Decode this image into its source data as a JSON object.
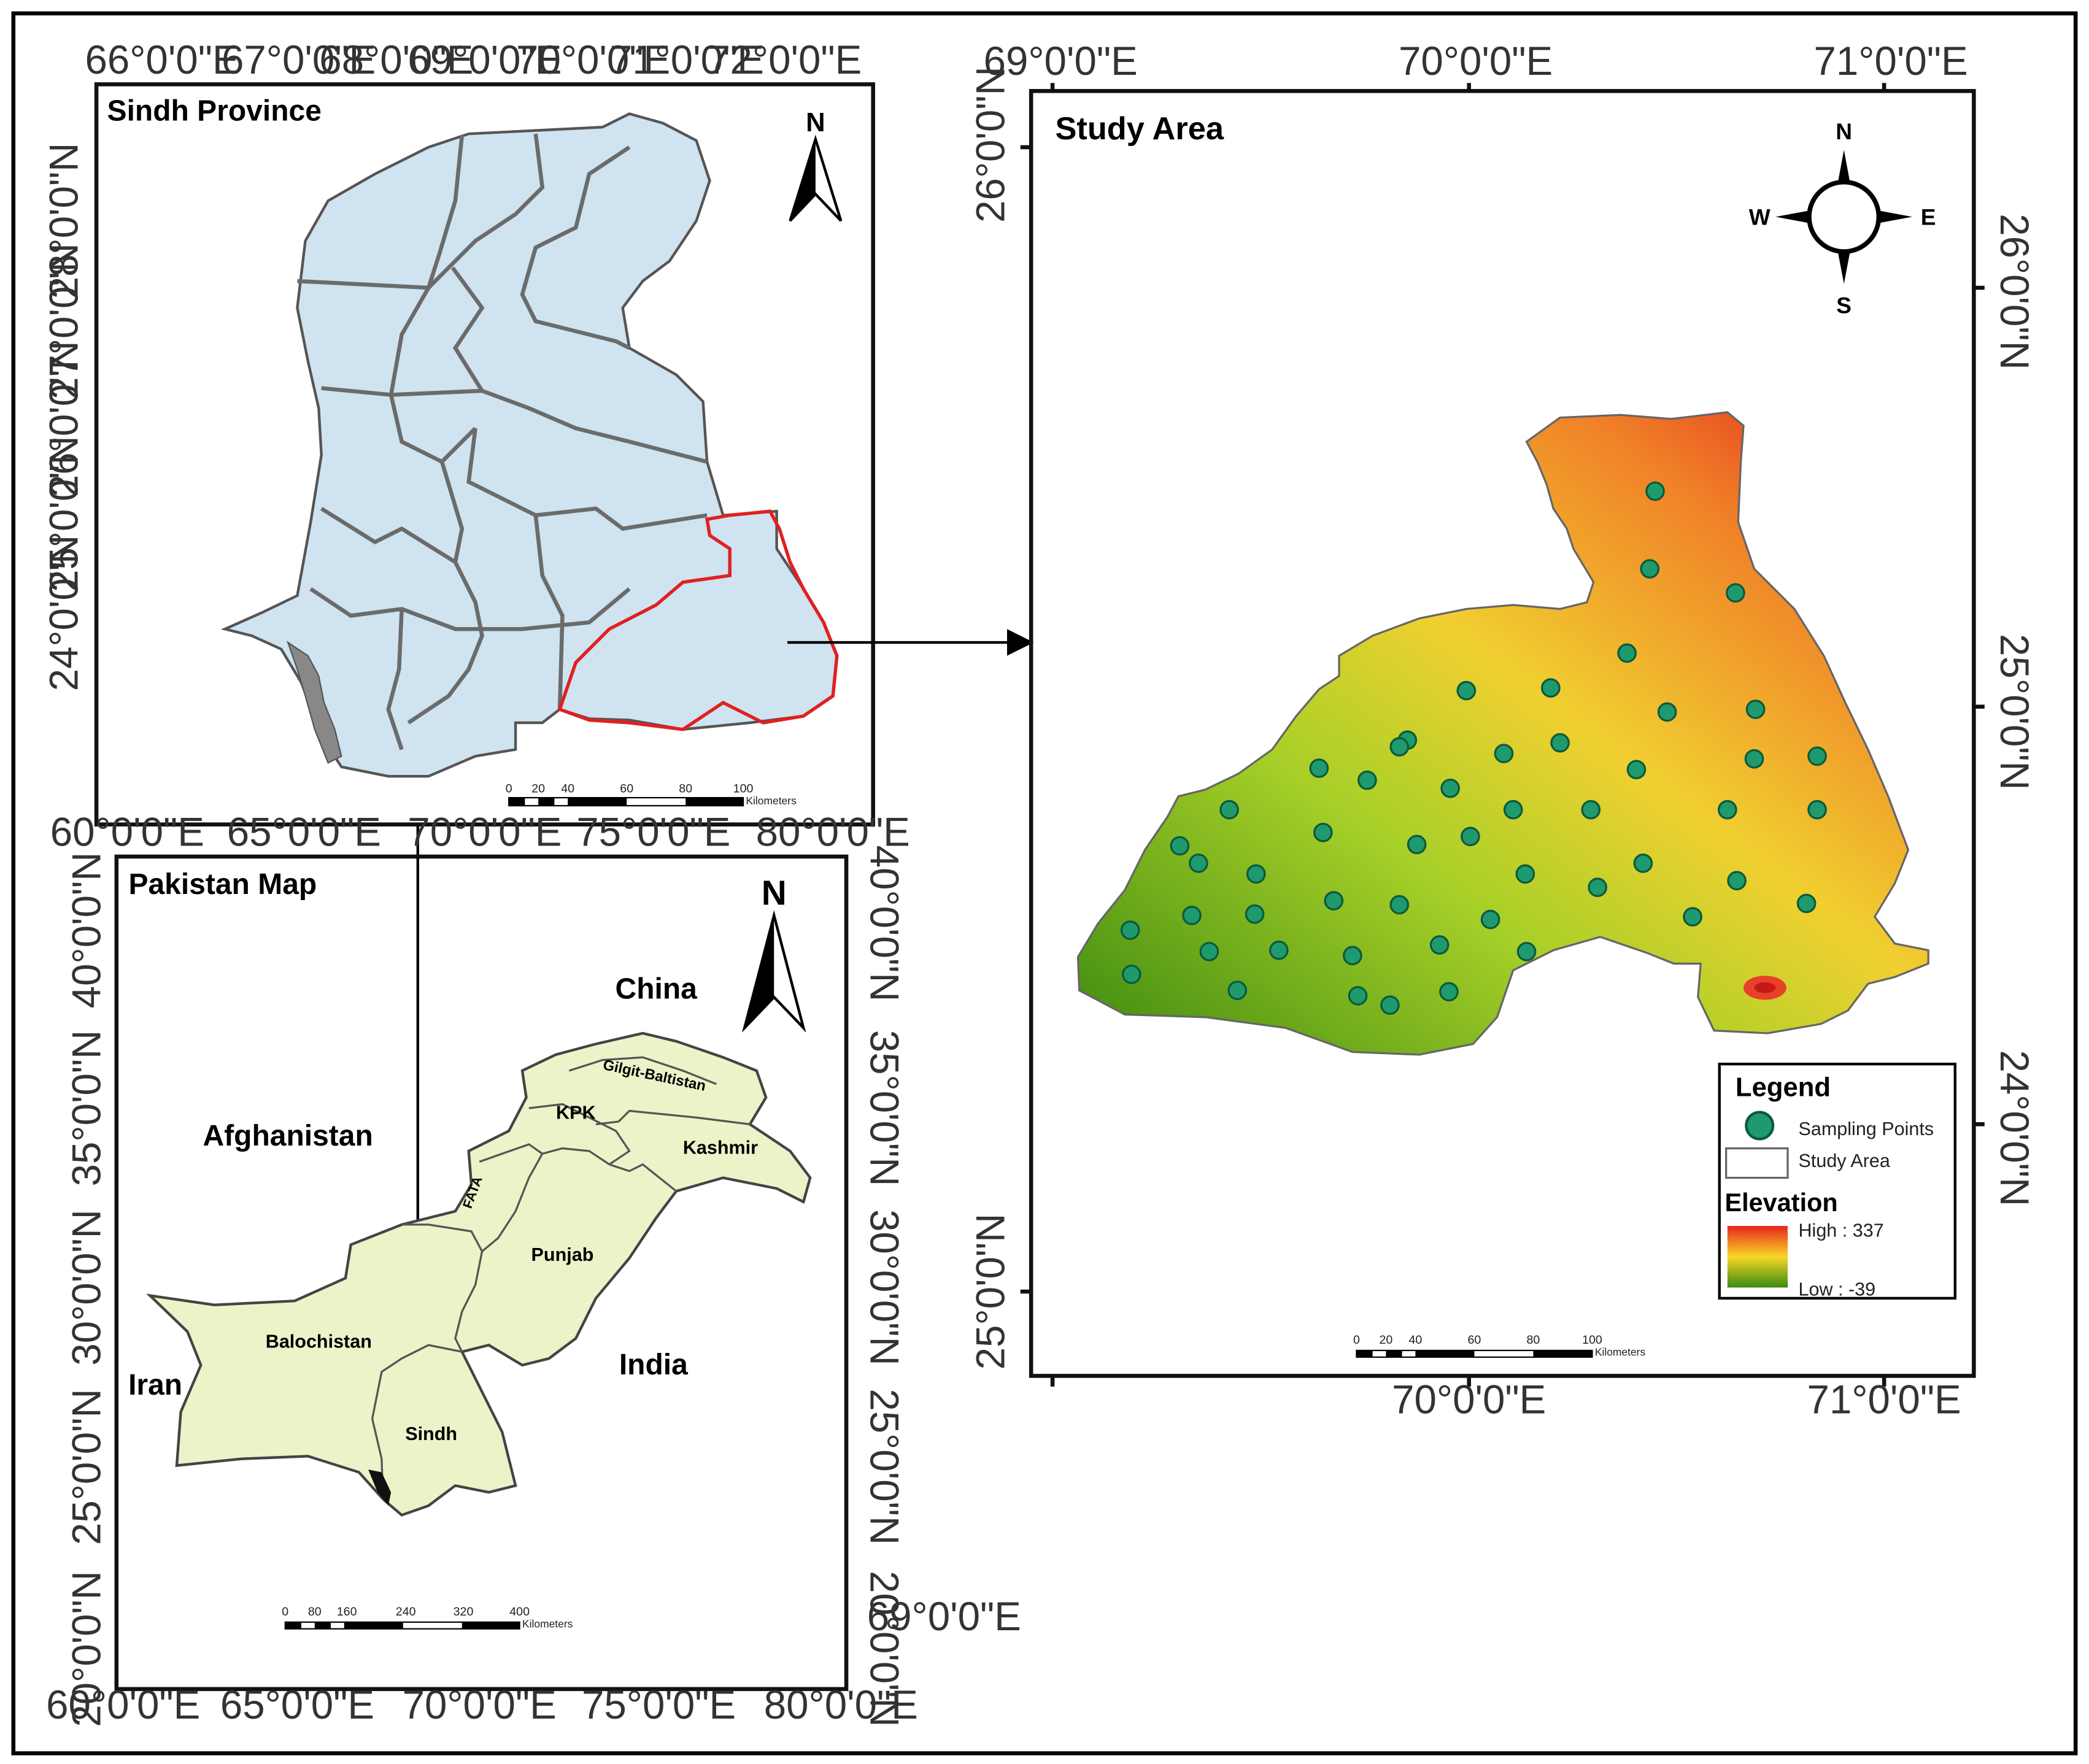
{
  "sindh_panel": {
    "title": "Sindh Province",
    "north": "N",
    "top_ticks": [
      "66°0'0\"E",
      "67°0'0\"E",
      "68°0'0\"E",
      "69°0'0\"E",
      "70°0'0\"E",
      "71°0'0\"E",
      "72°0'0\"E"
    ],
    "left_ticks": [
      "28°0'0\"N",
      "27°0'0\"N",
      "26°0'0\"N",
      "25°0'0\"N",
      "24°0'0\"N"
    ],
    "scale": {
      "labels": [
        "0",
        "20",
        "40",
        "60",
        "80",
        "100"
      ],
      "unit": "Kilometers"
    },
    "colors": {
      "province_fill": "#cfe3f0",
      "study_outline": "#e02020"
    }
  },
  "pakistan_panel": {
    "title": "Pakistan Map",
    "north": "N",
    "top_ticks": [
      "60°0'0\"E",
      "65°0'0\"E",
      "70°0'0\"E",
      "75°0'0\"E",
      "80°0'0\"E"
    ],
    "bottom_ticks": [
      "60°0'0\"E",
      "65°0'0\"E",
      "70°0'0\"E",
      "75°0'0\"E",
      "80°0'0\"E"
    ],
    "left_ticks": [
      "40°0'0\"N",
      "35°0'0\"N",
      "30°0'0\"N",
      "25°0'0\"N",
      "20°0'0\"N"
    ],
    "right_ticks": [
      "40°0'0\"N",
      "35°0'0\"N",
      "30°0'0\"N",
      "25°0'0\"N",
      "20°0'0\"N"
    ],
    "neighbors": {
      "china": "China",
      "afghanistan": "Afghanistan",
      "iran": "Iran",
      "india": "India"
    },
    "provinces": {
      "gilgit": "Gilgit-Baltistan",
      "kpk": "KPK",
      "kashmir": "Kashmir",
      "fata": "FATA",
      "punjab": "Punjab",
      "balochistan": "Balochistan",
      "sindh": "Sindh"
    },
    "stray_label": "69°0'0\"E",
    "scale": {
      "labels": [
        "0",
        "80",
        "160",
        "240",
        "320",
        "400"
      ],
      "unit": "Kilometers"
    },
    "colors": {
      "country_fill": "#eaf4c8"
    }
  },
  "study_panel": {
    "title": "Study Area",
    "compass": {
      "n": "N",
      "s": "S",
      "e": "E",
      "w": "W"
    },
    "top_ticks": [
      "69°0'0\"E",
      "70°0'0\"E",
      "71°0'0\"E"
    ],
    "bottom_ticks": [
      "70°0'0\"E",
      "71°0'0\"E"
    ],
    "left_ticks": [
      "26°0'0\"N",
      "25°0'0\"N"
    ],
    "right_ticks": [
      "26°0'0\"N",
      "25°0'0\"N",
      "24°0'0\"N"
    ],
    "legend": {
      "title": "Legend",
      "sampling_points": "Sampling Points",
      "study_area": "Study Area",
      "elevation_title": "Elevation",
      "high": "High : 337",
      "low": "Low : -39",
      "ramp_colors": [
        "#e8241a",
        "#f8d828",
        "#3c8a10"
      ],
      "point_color": "#1e9a6e"
    },
    "scale": {
      "labels": [
        "0",
        "20",
        "40",
        "60",
        "80",
        "100"
      ],
      "unit": "Kilometers"
    }
  }
}
